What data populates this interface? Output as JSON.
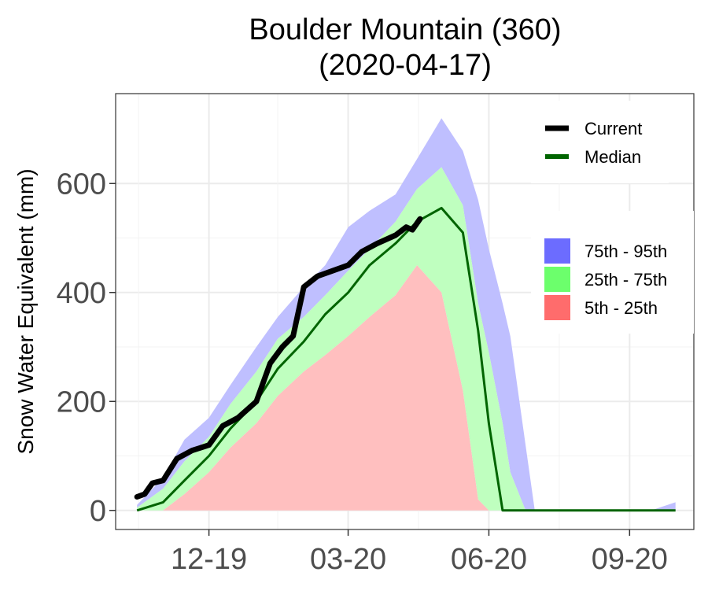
{
  "chart_data": {
    "type": "area",
    "title": "Boulder Mountain (360)",
    "subtitle": "(2020-04-17)",
    "xlabel": "",
    "ylabel": "Snow Water Equivalent (mm)",
    "x_ticks": [
      "12-19",
      "03-20",
      "06-20",
      "09-20"
    ],
    "x_tick_dates": [
      "2019-12-01",
      "2020-03-01",
      "2020-06-01",
      "2020-09-01"
    ],
    "xlim": [
      "2019-10-01",
      "2020-10-13"
    ],
    "y_ticks": [
      0,
      200,
      400,
      600
    ],
    "ylim": [
      -35,
      765
    ],
    "grid": true,
    "legend_position": "right",
    "legend_lines": [
      {
        "label": "Current",
        "color": "#000000"
      },
      {
        "label": "Median",
        "color": "#006400"
      }
    ],
    "legend_bands": [
      {
        "label": "75th - 95th",
        "color": "#6c6cff"
      },
      {
        "label": "25th - 75th",
        "color": "#6cff6c"
      },
      {
        "label": "5th - 25th",
        "color": "#ff6c6c"
      }
    ],
    "band_colors": {
      "p75_95": "#bfbfff",
      "p25_75": "#bfffbf",
      "p5_25": "#ffbfbf"
    },
    "x": [
      "2019-10-15",
      "2019-11-01",
      "2019-11-15",
      "2019-12-01",
      "2019-12-15",
      "2020-01-01",
      "2020-01-15",
      "2020-02-01",
      "2020-02-15",
      "2020-03-01",
      "2020-03-15",
      "2020-04-01",
      "2020-04-15",
      "2020-05-01",
      "2020-05-15",
      "2020-05-25",
      "2020-06-01",
      "2020-06-10",
      "2020-06-15",
      "2020-06-25",
      "2020-07-01",
      "2020-07-15",
      "2020-08-01",
      "2020-08-15",
      "2020-09-01",
      "2020-09-15",
      "2020-10-01"
    ],
    "series": [
      {
        "name": "95th",
        "values": [
          10,
          60,
          130,
          170,
          230,
          300,
          355,
          410,
          450,
          520,
          550,
          580,
          645,
          720,
          660,
          570,
          480,
          380,
          320,
          120,
          0,
          0,
          0,
          0,
          0,
          0,
          15
        ]
      },
      {
        "name": "75th",
        "values": [
          5,
          40,
          90,
          135,
          195,
          255,
          315,
          355,
          395,
          440,
          480,
          530,
          590,
          630,
          560,
          380,
          290,
          160,
          70,
          0,
          0,
          0,
          0,
          0,
          0,
          0,
          0
        ]
      },
      {
        "name": "Median",
        "values": [
          0,
          15,
          55,
          100,
          150,
          200,
          260,
          310,
          360,
          400,
          450,
          490,
          530,
          555,
          510,
          330,
          160,
          0,
          0,
          0,
          0,
          0,
          0,
          0,
          0,
          0,
          0
        ]
      },
      {
        "name": "25th",
        "values": [
          0,
          0,
          30,
          70,
          115,
          160,
          210,
          255,
          285,
          320,
          355,
          395,
          450,
          400,
          220,
          20,
          0,
          0,
          0,
          0,
          0,
          0,
          0,
          0,
          0,
          0,
          0
        ]
      },
      {
        "name": "5th",
        "values": [
          0,
          0,
          0,
          0,
          0,
          0,
          0,
          0,
          0,
          0,
          0,
          0,
          0,
          0,
          0,
          0,
          0,
          0,
          0,
          0,
          0,
          0,
          0,
          0,
          0,
          0,
          0
        ]
      }
    ],
    "current": {
      "name": "Current",
      "x": [
        "2019-10-15",
        "2019-10-20",
        "2019-10-25",
        "2019-11-01",
        "2019-11-10",
        "2019-11-20",
        "2019-12-01",
        "2019-12-10",
        "2019-12-20",
        "2020-01-01",
        "2020-01-10",
        "2020-01-18",
        "2020-01-25",
        "2020-02-01",
        "2020-02-10",
        "2020-02-20",
        "2020-03-01",
        "2020-03-10",
        "2020-03-20",
        "2020-04-01",
        "2020-04-08",
        "2020-04-12",
        "2020-04-17"
      ],
      "values": [
        25,
        30,
        50,
        55,
        95,
        110,
        120,
        155,
        170,
        200,
        270,
        300,
        320,
        410,
        430,
        440,
        450,
        475,
        490,
        505,
        520,
        515,
        535
      ]
    }
  }
}
